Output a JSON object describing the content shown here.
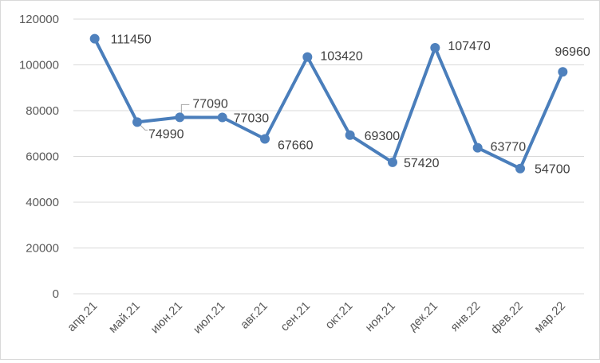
{
  "chart_data": {
    "type": "line",
    "categories": [
      "апр.21",
      "май.21",
      "июн.21",
      "июл.21",
      "авг.21",
      "сен.21",
      "окт.21",
      "ноя.21",
      "дек.21",
      "янв.22",
      "фев.22",
      "мар.22"
    ],
    "series": [
      {
        "values": [
          111450,
          74990,
          77090,
          77030,
          67660,
          103420,
          69300,
          57420,
          107470,
          63770,
          54700,
          96960
        ]
      }
    ],
    "data_labels": [
      "111450",
      "74990",
      "77090",
      "77030",
      "67660",
      "103420",
      "69300",
      "57420",
      "107470",
      "63770",
      "54700",
      "96960"
    ],
    "y_ticks": [
      "0",
      "20000",
      "40000",
      "60000",
      "80000",
      "100000",
      "120000"
    ],
    "ylim": [
      0,
      120000
    ],
    "grid": true,
    "legend": "none",
    "colors": {
      "line": "#4a7ebb",
      "marker": "#4f81bd",
      "grid": "#d9d9d9",
      "text": "#595959",
      "label": "#404040",
      "leader": "#a6a6a6"
    }
  }
}
